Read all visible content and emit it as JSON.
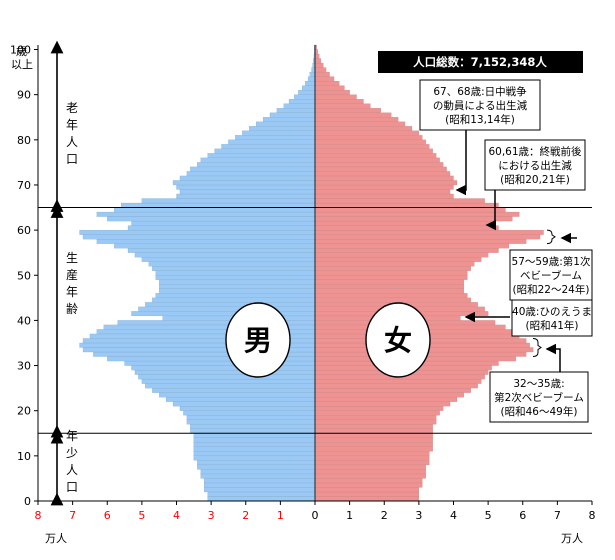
{
  "chart_data": {
    "type": "population-pyramid",
    "total_label": "人口総数：7,152,348人",
    "units": {
      "left": "万人",
      "right": "万人"
    },
    "y_ticks": [
      "0",
      "10",
      "20",
      "30",
      "40",
      "50",
      "60",
      "70",
      "80",
      "90",
      "100"
    ],
    "y_top_label": [
      "歳",
      "以上"
    ],
    "x_ticks_left": [
      "8",
      "7",
      "6",
      "5",
      "4",
      "3",
      "2",
      "1"
    ],
    "x_ticks_right": [
      "0",
      "1",
      "2",
      "3",
      "4",
      "5",
      "6",
      "7",
      "8"
    ],
    "xlim": [
      0,
      8
    ],
    "ylim": [
      0,
      100
    ],
    "gender_labels": {
      "male": "男",
      "female": "女"
    },
    "age_groups": [
      {
        "label": [
          "老",
          "年",
          "人",
          "口"
        ]
      },
      {
        "label": [
          "生",
          "産",
          "年",
          "齢"
        ]
      },
      {
        "label": [
          "年",
          "少",
          "人",
          "口"
        ]
      }
    ],
    "annotations": [
      {
        "lines": [
          "67、68歳:日中戦争",
          "の動員による出生減",
          "(昭和13,14年)"
        ]
      },
      {
        "lines": [
          "60,61歳：終戦前後",
          "における出生減",
          "(昭和20,21年)"
        ]
      },
      {
        "lines": [
          "57～59歳:第1次",
          "ベビーブーム",
          "(昭和22～24年)"
        ]
      },
      {
        "lines": [
          "40歳:ひのえうま",
          "(昭和41年)"
        ]
      },
      {
        "lines": [
          "32～35歳:",
          "第2次ベビーブーム",
          "(昭和46～49年)"
        ]
      }
    ],
    "colors": {
      "male": "#99c9f4",
      "female": "#ee9292",
      "ticks_red": "#ff0000"
    },
    "male": [
      3.1,
      3.1,
      3.2,
      3.2,
      3.2,
      3.3,
      3.3,
      3.4,
      3.4,
      3.5,
      3.5,
      3.5,
      3.5,
      3.5,
      3.5,
      3.6,
      3.6,
      3.7,
      3.7,
      3.8,
      3.9,
      4.1,
      4.3,
      4.5,
      4.7,
      4.9,
      5.0,
      5.1,
      5.2,
      5.3,
      5.5,
      6.0,
      6.4,
      6.7,
      6.8,
      6.7,
      6.5,
      6.3,
      6.1,
      5.7,
      4.4,
      5.3,
      5.1,
      4.9,
      4.7,
      4.6,
      4.5,
      4.5,
      4.5,
      4.6,
      4.6,
      4.7,
      4.8,
      5.0,
      5.2,
      5.4,
      5.8,
      6.3,
      6.7,
      6.8,
      5.4,
      5.3,
      6.0,
      6.3,
      5.8,
      5.6,
      5.0,
      4.0,
      3.9,
      4.0,
      4.1,
      3.9,
      3.7,
      3.6,
      3.4,
      3.3,
      3.1,
      2.9,
      2.7,
      2.5,
      2.3,
      2.1,
      1.9,
      1.7,
      1.5,
      1.3,
      1.1,
      0.9,
      0.75,
      0.6,
      0.48,
      0.37,
      0.28,
      0.2,
      0.15,
      0.1,
      0.07,
      0.05,
      0.03,
      0.02,
      0.02
    ],
    "female": [
      3.0,
      3.0,
      3.0,
      3.1,
      3.1,
      3.2,
      3.2,
      3.2,
      3.3,
      3.3,
      3.3,
      3.4,
      3.4,
      3.4,
      3.4,
      3.4,
      3.4,
      3.5,
      3.5,
      3.6,
      3.7,
      3.9,
      4.1,
      4.3,
      4.5,
      4.7,
      4.8,
      4.9,
      5.0,
      5.1,
      5.3,
      5.8,
      6.1,
      6.3,
      6.2,
      6.1,
      5.9,
      5.7,
      5.5,
      5.2,
      4.2,
      5.0,
      4.9,
      4.7,
      4.5,
      4.4,
      4.3,
      4.3,
      4.3,
      4.4,
      4.4,
      4.5,
      4.6,
      4.8,
      5.0,
      5.3,
      5.6,
      6.1,
      6.5,
      6.6,
      5.3,
      5.1,
      5.7,
      5.9,
      5.5,
      5.3,
      4.9,
      4.0,
      3.9,
      4.0,
      4.1,
      4.0,
      3.9,
      3.8,
      3.7,
      3.6,
      3.5,
      3.4,
      3.3,
      3.2,
      3.1,
      3.0,
      2.8,
      2.6,
      2.4,
      2.2,
      1.9,
      1.6,
      1.4,
      1.2,
      1.0,
      0.85,
      0.7,
      0.55,
      0.42,
      0.32,
      0.24,
      0.17,
      0.12,
      0.08,
      0.05
    ]
  }
}
